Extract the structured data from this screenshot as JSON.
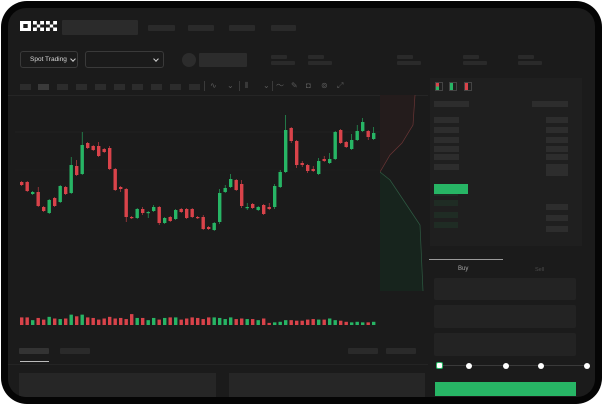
{
  "app": {
    "logo_text": "OKX"
  },
  "toolbar": {
    "market_selector": "Spot Trading"
  },
  "order_book": {
    "view_icons": [
      "both-sides-icon",
      "bids-only-icon",
      "asks-only-icon"
    ]
  },
  "trade_panel": {
    "tabs": [
      {
        "label": "Buy",
        "active": true
      },
      {
        "label": "Sell",
        "active": false
      }
    ],
    "slider_percent": 0,
    "slider_stops": 5
  },
  "colors": {
    "up": "#27b565",
    "down": "#d9434a",
    "accent": "#27b565",
    "background": "#1b1b1b"
  },
  "chart_data": {
    "type": "candlestick",
    "candles": [
      [
        68,
        69,
        64,
        65
      ],
      [
        68,
        69,
        58,
        59
      ],
      [
        56,
        59,
        55,
        58
      ],
      [
        58,
        63,
        43,
        44
      ],
      [
        43,
        44,
        38,
        39
      ],
      [
        37,
        51,
        36,
        50
      ],
      [
        52,
        53,
        43,
        44
      ],
      [
        48,
        65,
        47,
        64
      ],
      [
        63,
        64,
        55,
        56
      ],
      [
        57,
        93,
        56,
        85
      ],
      [
        84,
        90,
        74,
        75
      ],
      [
        76,
        118,
        75,
        105
      ],
      [
        107,
        108,
        101,
        102
      ],
      [
        104,
        105,
        99,
        100
      ],
      [
        104,
        108,
        93,
        94
      ],
      [
        101,
        102,
        97,
        98
      ],
      [
        102,
        104,
        80,
        81
      ],
      [
        81,
        82,
        59,
        60
      ],
      [
        63,
        64,
        58,
        61
      ],
      [
        61,
        62,
        28,
        33
      ],
      [
        33,
        34,
        31,
        32
      ],
      [
        32,
        42,
        31,
        41
      ],
      [
        41,
        43,
        35,
        37
      ],
      [
        37,
        39,
        32,
        38
      ],
      [
        39,
        45,
        38,
        43
      ],
      [
        43,
        44,
        25,
        27
      ],
      [
        27,
        33,
        26,
        32
      ],
      [
        33,
        34,
        28,
        29
      ],
      [
        31,
        41,
        30,
        40
      ],
      [
        41,
        42,
        37,
        38
      ],
      [
        41,
        42,
        31,
        32
      ],
      [
        41,
        42,
        32,
        33
      ],
      [
        33,
        34,
        31,
        32
      ],
      [
        33,
        35,
        20,
        21
      ],
      [
        23,
        24,
        20,
        21
      ],
      [
        20,
        28,
        19,
        27
      ],
      [
        28,
        61,
        26,
        57
      ],
      [
        58,
        65,
        57,
        62
      ],
      [
        63,
        76,
        62,
        71
      ],
      [
        70,
        71,
        59,
        60
      ],
      [
        66,
        70,
        42,
        44
      ],
      [
        42,
        47,
        40,
        43
      ],
      [
        46,
        47,
        41,
        42
      ],
      [
        40,
        44,
        39,
        43
      ],
      [
        45,
        46,
        35,
        36
      ],
      [
        43,
        47,
        40,
        41
      ],
      [
        43,
        66,
        41,
        64
      ],
      [
        63,
        80,
        62,
        78
      ],
      [
        78,
        135,
        77,
        120
      ],
      [
        122,
        123,
        107,
        109
      ],
      [
        109,
        110,
        82,
        85
      ],
      [
        87,
        89,
        83,
        85
      ],
      [
        85,
        86,
        77,
        79
      ],
      [
        81,
        84,
        78,
        79
      ],
      [
        76,
        92,
        75,
        89
      ],
      [
        91,
        94,
        88,
        89
      ],
      [
        87,
        97,
        86,
        91
      ],
      [
        91,
        119,
        90,
        118
      ],
      [
        120,
        121,
        106,
        107
      ],
      [
        108,
        109,
        102,
        103
      ],
      [
        101,
        116,
        100,
        110
      ],
      [
        110,
        125,
        109,
        119
      ],
      [
        119,
        132,
        118,
        128
      ],
      [
        119,
        120,
        110,
        113
      ],
      [
        111,
        123,
        110,
        117
      ]
    ],
    "volume": [
      12,
      12,
      7,
      11,
      8,
      13,
      10,
      9,
      10,
      17,
      14,
      17,
      12,
      11,
      8,
      10,
      13,
      10,
      11,
      9,
      18,
      11,
      11,
      7,
      11,
      8,
      11,
      12,
      12,
      8,
      10,
      12,
      11,
      9,
      12,
      12,
      11,
      9,
      12,
      9,
      10,
      9,
      9,
      7,
      10,
      2,
      3,
      4,
      7,
      7,
      6,
      6,
      8,
      9,
      8,
      8,
      10,
      7,
      6,
      4,
      3,
      4,
      3,
      3,
      4
    ],
    "depth": {
      "asks": "red",
      "bids": "green"
    }
  }
}
